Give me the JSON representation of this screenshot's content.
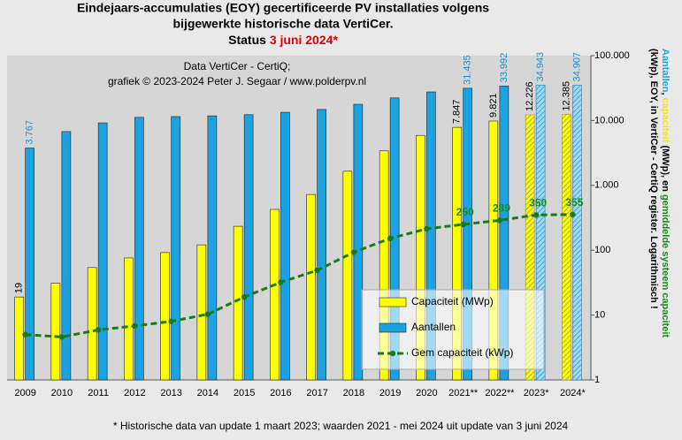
{
  "chart_data": {
    "type": "bar",
    "title_lines": [
      "Eindejaars-accumulaties (EOY) gecertificeerde PV installaties volgens",
      "bijgewerkte historische data VertiCer."
    ],
    "status": {
      "text": "Status",
      "date": "3 juni 2024*",
      "date_color": "#e00000"
    },
    "watermark": [
      "Data VertiCer - CertiQ;",
      "grafiek © 2023-2024 Peter J. Segaar / www.polderpv.nl"
    ],
    "footnote": "* Historische data van update 1 maart 2023; waarden 2021 - mei 2024 uit update van 3 juni 2024",
    "right_label": [
      [
        {
          "text": "Aantallen",
          "color": "#1aa3e0"
        },
        {
          "text": ", ",
          "color": "#000000"
        },
        {
          "text": "capaciteit",
          "color": "#f0e020"
        },
        {
          "text": " (MWp), en ",
          "color": "#000000"
        },
        {
          "text": "gemiddelde systeem capaciteit",
          "color": "#1a8a1a"
        }
      ],
      [
        {
          "text": "(kWp), EOY, in VertiCer - CertiQ register. Logarithmisch !",
          "color": "#000000"
        }
      ]
    ],
    "categories": [
      "2009",
      "2010",
      "2011",
      "2012",
      "2013",
      "2014",
      "2015",
      "2016",
      "2017",
      "2018",
      "2019",
      "2020",
      "2021**",
      "2022**",
      "2023*",
      "2024*"
    ],
    "hatched": [
      false,
      false,
      false,
      false,
      false,
      false,
      false,
      false,
      false,
      false,
      false,
      false,
      false,
      false,
      true,
      true
    ],
    "log_scale": true,
    "ylim": [
      1,
      100000
    ],
    "yticks": [
      1,
      10,
      100,
      {
        "value": 1000,
        "label": "1.000"
      },
      {
        "value": 10000,
        "label": "10.000"
      },
      {
        "value": 100000,
        "label": "100.000"
      }
    ],
    "legend": "bottom-right",
    "series": [
      {
        "name": "Capaciteit (MWp)",
        "color": "#ffff00",
        "kind": "bar",
        "values": [
          19,
          31,
          54,
          76,
          92,
          121,
          234,
          426,
          724,
          1650,
          3400,
          5900,
          7847,
          9821,
          12226,
          12385
        ],
        "value_labels": [
          "19",
          null,
          null,
          null,
          null,
          null,
          null,
          null,
          null,
          null,
          null,
          null,
          "7.847",
          "9.821",
          "12.226",
          "12.385"
        ],
        "label_color": "#000000"
      },
      {
        "name": "Aantallen",
        "color": "#1aa3e0",
        "kind": "bar",
        "values": [
          3767,
          6760,
          9200,
          11200,
          11500,
          11800,
          12300,
          13400,
          14800,
          17800,
          22300,
          27600,
          31435,
          33992,
          34943,
          34907
        ],
        "value_labels": [
          "3.767",
          null,
          null,
          null,
          null,
          null,
          null,
          null,
          null,
          null,
          null,
          null,
          "31.435",
          "33.992",
          "34.943",
          "34.907"
        ],
        "label_color": "#1a8fd0"
      },
      {
        "name": "Gem capaciteit (kWp)",
        "color": "#1a7a1a",
        "kind": "line",
        "values": [
          5.0,
          4.6,
          5.9,
          6.8,
          8.0,
          10.3,
          19,
          32,
          49,
          93,
          152,
          214,
          250,
          289,
          350,
          355
        ],
        "value_labels": [
          null,
          null,
          null,
          null,
          null,
          null,
          null,
          null,
          null,
          null,
          null,
          null,
          "250",
          "289",
          "350",
          "355"
        ],
        "label_color": "#1a8a1a"
      }
    ]
  }
}
